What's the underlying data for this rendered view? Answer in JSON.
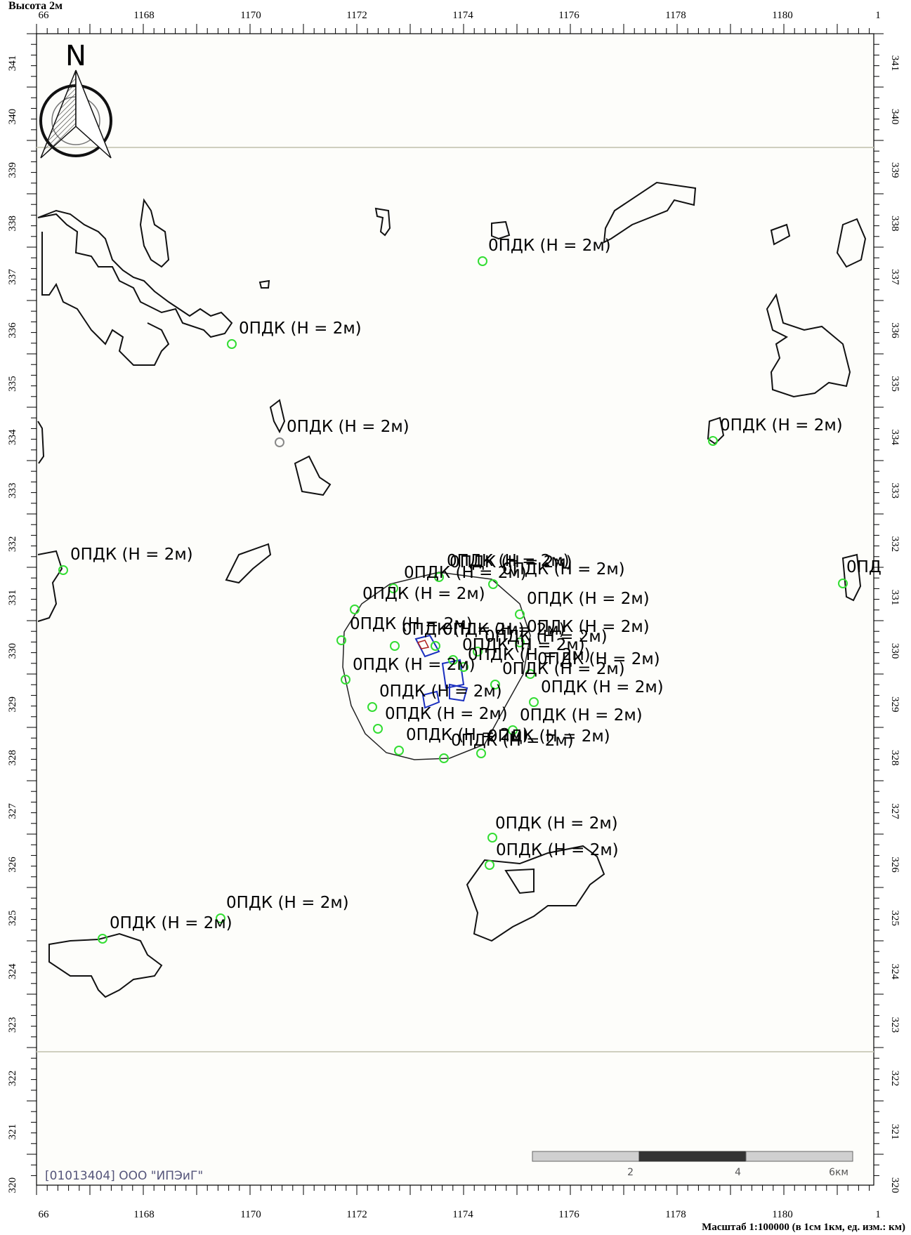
{
  "header": {
    "title": "Высота 2м"
  },
  "footer": {
    "scale_text": "Масштаб 1:100000 (в 1см 1км, ед. изм.: км)"
  },
  "organization": "[01013404] ООО \"ИПЭиГ\"",
  "north_arrow": {
    "letter": "N"
  },
  "axes": {
    "x_ticks": [
      "66",
      "1168",
      "1170",
      "1172",
      "1174",
      "1176",
      "1178",
      "1180",
      "1"
    ],
    "y_ticks": [
      "341",
      "340",
      "339",
      "338",
      "337",
      "336",
      "335",
      "334",
      "333",
      "332",
      "331",
      "330",
      "329",
      "328",
      "327",
      "326",
      "325",
      "324",
      "323",
      "322",
      "321",
      "320"
    ]
  },
  "scale_bar": {
    "labels": [
      "2",
      "4",
      "6км"
    ]
  },
  "point_labels": [
    "0ПДК (H = 2м)",
    "0ПДК (H = 2м)",
    "0ПДК (H = 2м)",
    "0ПДК (H = 2м)",
    "0ПДК (H = 2м)",
    "0ПДК (H = 2м)",
    "0ПДК (H = 2м)",
    "0ПДК (H = 2м)",
    "0ПДК (H = 2м)",
    "0ПДК (H = 2м)",
    "0ПДК (H = 2м)",
    "0ПДК (H = 2м)",
    "0ПДК (H = 2м)",
    "0ПДК (H = 2м)",
    "0ПДК (H = 2м)",
    "0ПДК (H = 2м)",
    "0ПДК (H = 2м)",
    "0ПДК (H = 2м)",
    "0ПДК (H = 2м)",
    "0ПДК (H = 2м)",
    "0ПДК (H = 2м)",
    "0ПДК (H = 2м)",
    "0ПДК (H = 2м)",
    "0ПДК (H = 2м)",
    "0ПДК (H = 2м)",
    "0ПДК (H = 2м)",
    "0ПДК (H = 2м)",
    "0ПДК (H = 2м)",
    "0ПДК (H = 2м)",
    "0ПДК (H = 2м)",
    "0ПДК (H = 2м)",
    "0ПДК (H = 2м)"
  ],
  "edge_label": "0ПД",
  "colors": {
    "frame": "#000000",
    "point": "#33dd33",
    "source": "#1a2fbf",
    "map_bg": "#fdfdfa"
  }
}
